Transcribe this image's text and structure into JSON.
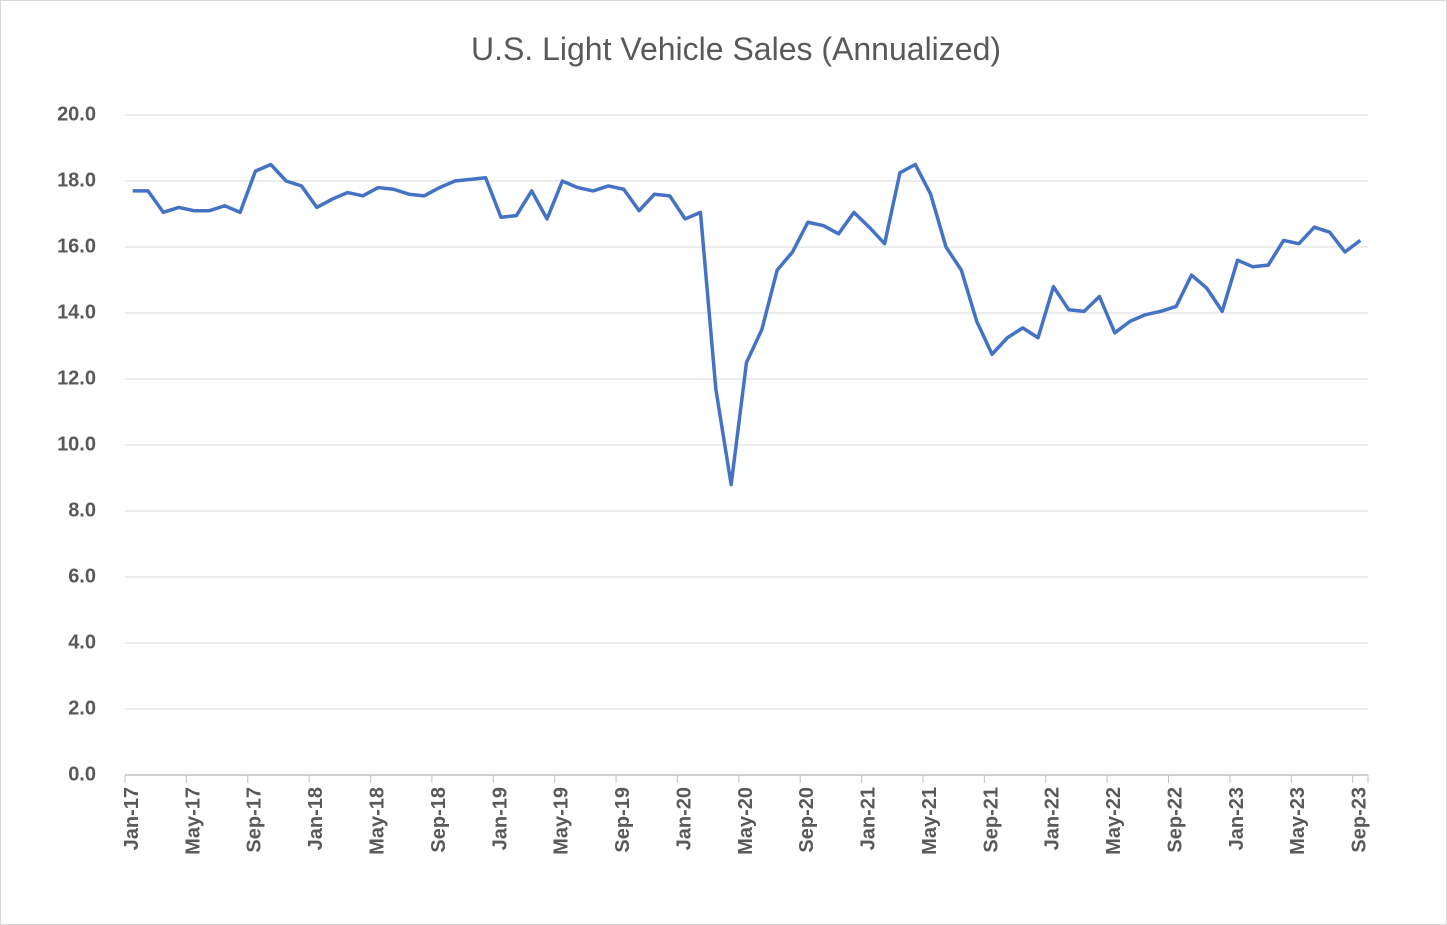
{
  "chart_data": {
    "type": "line",
    "title": "U.S. Light Vehicle Sales (Annualized)",
    "categories": [
      "Jan-17",
      null,
      null,
      null,
      "May-17",
      null,
      null,
      null,
      "Sep-17",
      null,
      null,
      null,
      "Jan-18",
      null,
      null,
      null,
      "May-18",
      null,
      null,
      null,
      "Sep-18",
      null,
      null,
      null,
      "Jan-19",
      null,
      null,
      null,
      "May-19",
      null,
      null,
      null,
      "Sep-19",
      null,
      null,
      null,
      "Jan-20",
      null,
      null,
      null,
      "May-20",
      null,
      null,
      null,
      "Sep-20",
      null,
      null,
      null,
      "Jan-21",
      null,
      null,
      null,
      "May-21",
      null,
      null,
      null,
      "Sep-21",
      null,
      null,
      null,
      "Jan-22",
      null,
      null,
      null,
      "May-22",
      null,
      null,
      null,
      "Sep-22",
      null,
      null,
      null,
      "Jan-23",
      null,
      null,
      null,
      "May-23",
      null,
      null,
      null,
      "Sep-23"
    ],
    "values": [
      17.7,
      17.7,
      17.05,
      17.2,
      17.1,
      17.1,
      17.25,
      17.05,
      18.3,
      18.5,
      18.0,
      17.85,
      17.2,
      17.45,
      17.65,
      17.55,
      17.8,
      17.75,
      17.6,
      17.55,
      17.8,
      18.0,
      18.05,
      18.1,
      16.9,
      16.95,
      17.7,
      16.85,
      18.0,
      17.8,
      17.7,
      17.85,
      17.75,
      17.1,
      17.6,
      17.55,
      16.85,
      17.05,
      11.7,
      8.8,
      12.5,
      13.5,
      15.3,
      15.85,
      16.75,
      16.65,
      16.4,
      17.05,
      16.6,
      16.1,
      18.25,
      18.5,
      17.6,
      16.0,
      15.3,
      13.75,
      12.75,
      13.25,
      13.55,
      13.25,
      14.8,
      14.1,
      14.05,
      14.5,
      13.4,
      13.75,
      13.95,
      14.05,
      14.2,
      15.15,
      14.75,
      14.05,
      15.6,
      15.4,
      15.45,
      16.2,
      16.1,
      16.6,
      16.45,
      15.85,
      16.2
    ],
    "color": "#4472c4",
    "ylim": [
      0,
      20
    ],
    "yticks": [
      {
        "value": 0,
        "label": "0.0"
      },
      {
        "value": 2,
        "label": "2.0"
      },
      {
        "value": 4,
        "label": "4.0"
      },
      {
        "value": 6,
        "label": "6.0"
      },
      {
        "value": 8,
        "label": "8.0"
      },
      {
        "value": 10,
        "label": "10.0"
      },
      {
        "value": 12,
        "label": "12.0"
      },
      {
        "value": 14,
        "label": "14.0"
      },
      {
        "value": 16,
        "label": "16.0"
      },
      {
        "value": 18,
        "label": "18.0"
      },
      {
        "value": 20,
        "label": "20.0"
      }
    ],
    "grid": true
  }
}
